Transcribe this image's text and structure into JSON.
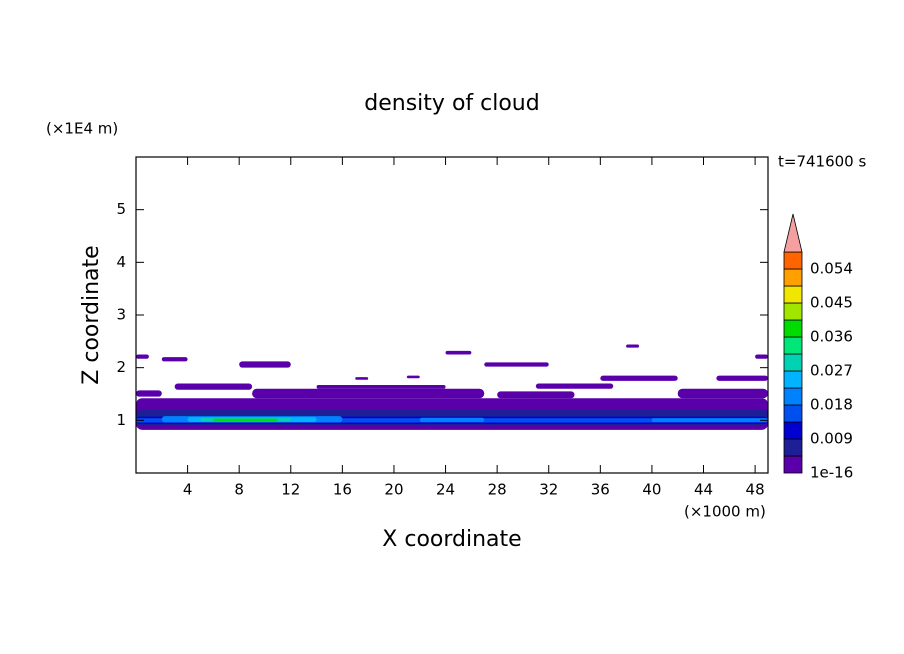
{
  "chart_data": {
    "type": "contour",
    "title": "density of cloud",
    "x_label": "X coordinate",
    "y_label": "Z coordinate",
    "x_unit": "(×1000 m)",
    "y_unit": "(×1E4 m)",
    "annotation": "t=741600 s",
    "xlim": [
      0,
      49
    ],
    "xticks": [
      4,
      8,
      12,
      16,
      20,
      24,
      28,
      32,
      36,
      40,
      44,
      48
    ],
    "ylim": [
      0,
      6
    ],
    "yticks": [
      1,
      2,
      3,
      4,
      5
    ],
    "levels": [
      1e-16,
      0.0045,
      0.009,
      0.0135,
      0.018,
      0.0225,
      0.027,
      0.0315,
      0.036,
      0.0405,
      0.045,
      0.0495,
      0.054
    ],
    "level_colors": [
      "#5a00aa",
      "#1e1e96",
      "#0000d2",
      "#0050f0",
      "#0082ff",
      "#00b4ff",
      "#00d2b4",
      "#00e678",
      "#00dc00",
      "#a0e600",
      "#f0e600",
      "#ffa000",
      "#ff6400",
      "#ff0000"
    ],
    "colorbar_ticks": [
      1e-16,
      0.009,
      0.018,
      0.027,
      0.036,
      0.045,
      0.054
    ],
    "overflow_color": "#f4a0a0",
    "regions": [
      {
        "x": [
          0,
          49
        ],
        "z": [
          0.82,
          1.42
        ],
        "level": 1e-16
      },
      {
        "x": [
          0,
          2
        ],
        "z": [
          1.45,
          1.57
        ],
        "level": 1e-16
      },
      {
        "x": [
          3,
          9
        ],
        "z": [
          1.58,
          1.7
        ],
        "level": 1e-16
      },
      {
        "x": [
          9,
          27
        ],
        "z": [
          1.42,
          1.6
        ],
        "level": 1e-16
      },
      {
        "x": [
          14,
          24
        ],
        "z": [
          1.6,
          1.67
        ],
        "level": 1e-16
      },
      {
        "x": [
          28,
          34
        ],
        "z": [
          1.42,
          1.55
        ],
        "level": 1e-16
      },
      {
        "x": [
          31,
          37
        ],
        "z": [
          1.6,
          1.7
        ],
        "level": 1e-16
      },
      {
        "x": [
          36,
          42
        ],
        "z": [
          1.75,
          1.85
        ],
        "level": 1e-16
      },
      {
        "x": [
          42,
          49
        ],
        "z": [
          1.42,
          1.6
        ],
        "level": 1e-16
      },
      {
        "x": [
          45,
          49
        ],
        "z": [
          1.75,
          1.85
        ],
        "level": 1e-16
      },
      {
        "x": [
          8,
          12
        ],
        "z": [
          2.0,
          2.12
        ],
        "level": 1e-16
      },
      {
        "x": [
          2,
          4
        ],
        "z": [
          2.12,
          2.2
        ],
        "level": 1e-16
      },
      {
        "x": [
          0,
          1
        ],
        "z": [
          2.17,
          2.25
        ],
        "level": 1e-16
      },
      {
        "x": [
          24,
          26
        ],
        "z": [
          2.25,
          2.32
        ],
        "level": 1e-16
      },
      {
        "x": [
          27,
          32
        ],
        "z": [
          2.02,
          2.1
        ],
        "level": 1e-16
      },
      {
        "x": [
          38,
          39
        ],
        "z": [
          2.38,
          2.44
        ],
        "level": 1e-16
      },
      {
        "x": [
          48,
          49
        ],
        "z": [
          2.17,
          2.25
        ],
        "level": 1e-16
      },
      {
        "x": [
          17,
          18
        ],
        "z": [
          1.77,
          1.82
        ],
        "level": 1e-16
      },
      {
        "x": [
          21,
          22
        ],
        "z": [
          1.8,
          1.85
        ],
        "level": 1e-16
      },
      {
        "x": [
          0,
          49
        ],
        "z": [
          0.9,
          1.2
        ],
        "level": 0.0045
      },
      {
        "x": [
          0,
          49
        ],
        "z": [
          0.93,
          1.07
        ],
        "level": 0.009
      },
      {
        "x": [
          0,
          49
        ],
        "z": [
          0.96,
          1.04
        ],
        "level": 0.0135
      },
      {
        "x": [
          2,
          16
        ],
        "z": [
          0.96,
          1.08
        ],
        "level": 0.018
      },
      {
        "x": [
          22,
          27
        ],
        "z": [
          0.97,
          1.05
        ],
        "level": 0.018
      },
      {
        "x": [
          40,
          49
        ],
        "z": [
          0.97,
          1.04
        ],
        "level": 0.018
      },
      {
        "x": [
          4,
          14
        ],
        "z": [
          0.97,
          1.06
        ],
        "level": 0.0225
      },
      {
        "x": [
          5,
          12
        ],
        "z": [
          0.98,
          1.05
        ],
        "level": 0.027
      },
      {
        "x": [
          6,
          11
        ],
        "z": [
          0.99,
          1.03
        ],
        "level": 0.036
      }
    ]
  }
}
